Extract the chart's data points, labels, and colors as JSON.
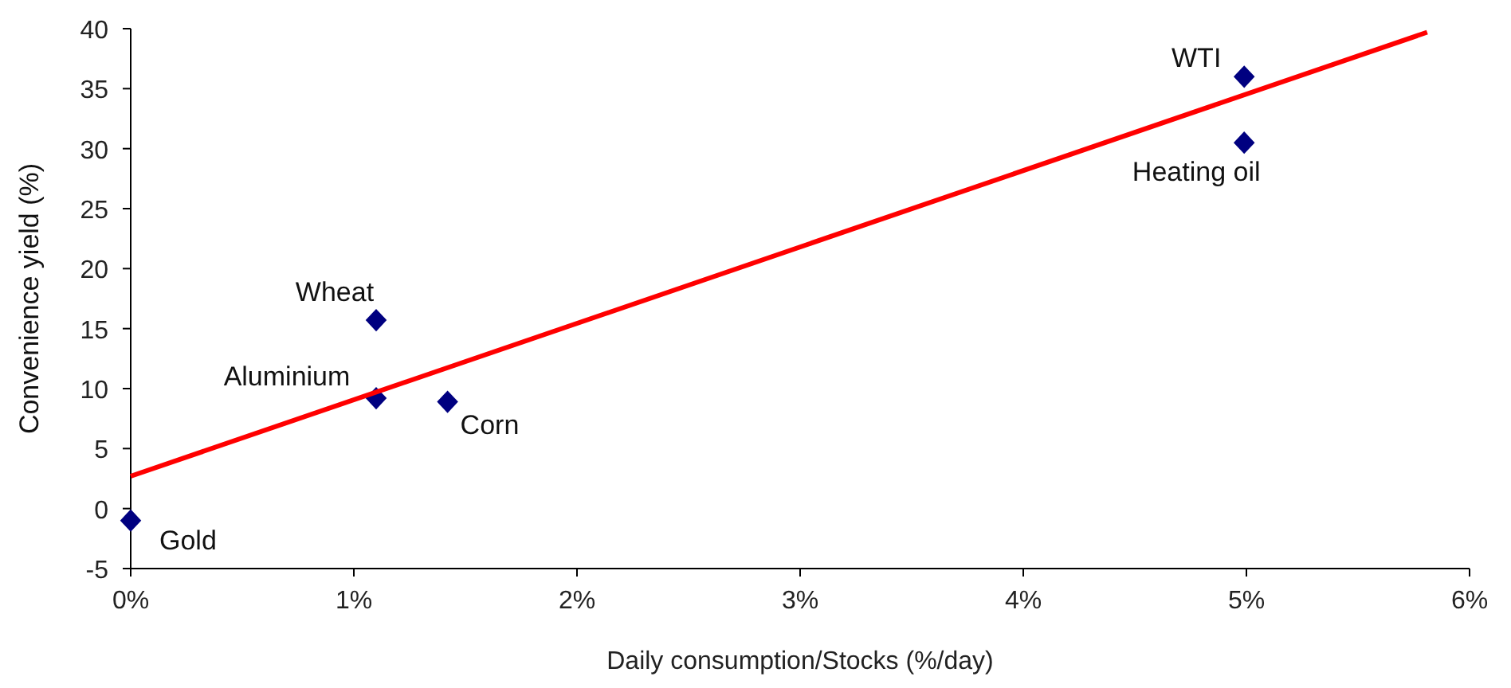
{
  "chart_data": {
    "type": "scatter",
    "xlabel": "Daily consumption/Stocks (%/day)",
    "ylabel": "Convenience yield (%)",
    "xlim": [
      0,
      6
    ],
    "xticks": [
      {
        "value": 0,
        "label": "0%"
      },
      {
        "value": 1,
        "label": "1%"
      },
      {
        "value": 2,
        "label": "2%"
      },
      {
        "value": 3,
        "label": "3%"
      },
      {
        "value": 4,
        "label": "4%"
      },
      {
        "value": 5,
        "label": "5%"
      },
      {
        "value": 6,
        "label": "6%"
      }
    ],
    "ylim": [
      -5,
      40
    ],
    "yticks": [
      -5,
      0,
      5,
      10,
      15,
      20,
      25,
      30,
      35,
      40
    ],
    "grid": false,
    "series": [
      {
        "color": "#000080",
        "marker": "diamond",
        "x": [
          0,
          1.1,
          1.1,
          1.42,
          4.99,
          4.99
        ],
        "values": [
          -1,
          15.7,
          9.2,
          8.9,
          36,
          30.5
        ]
      },
      {
        "type": "line",
        "color": "#ff0000",
        "marker": "none",
        "line_style": "solid",
        "x": [
          0,
          5.81
        ],
        "values": [
          2.7,
          39.7
        ]
      }
    ],
    "annotations": [
      {
        "text": "Gold",
        "x": 0,
        "y": -1
      },
      {
        "text": "Wheat",
        "x": 1.1,
        "y": 15.7
      },
      {
        "text": "Aluminium",
        "x": 1.1,
        "y": 9.2
      },
      {
        "text": "Corn",
        "x": 1.42,
        "y": 8.9
      },
      {
        "text": "WTI",
        "x": 4.99,
        "y": 36
      },
      {
        "text": "Heating oil",
        "x": 4.99,
        "y": 30.5
      }
    ]
  }
}
